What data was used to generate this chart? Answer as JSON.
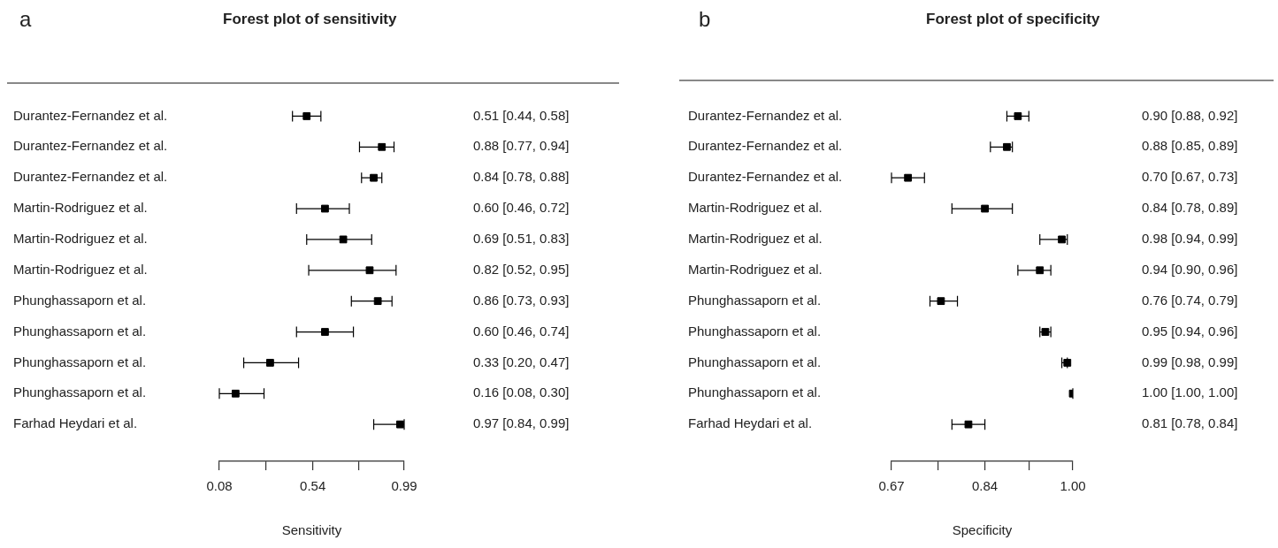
{
  "chart_data": [
    {
      "type": "scatter",
      "orientation": "horizontal",
      "title": "Forest plot of sensitivity",
      "xlabel": "Sensitivity",
      "annotations": [
        "a"
      ],
      "marker": "square",
      "grid": false,
      "color": "#000000",
      "categories": [
        "Durantez-Fernandez et al.",
        "Durantez-Fernandez et al.",
        "Durantez-Fernandez et al.",
        "Martin-Rodriguez et al.",
        "Martin-Rodriguez et al.",
        "Martin-Rodriguez et al.",
        "Phunghassaporn et al.",
        "Phunghassaporn et al.",
        "Phunghassaporn et al.",
        "Phunghassaporn et al.",
        "Farhad Heydari et al."
      ],
      "values": [
        0.51,
        0.88,
        0.84,
        0.6,
        0.69,
        0.82,
        0.86,
        0.6,
        0.33,
        0.16,
        0.97
      ],
      "errors": [
        [
          0.44,
          0.58
        ],
        [
          0.77,
          0.94
        ],
        [
          0.78,
          0.88
        ],
        [
          0.46,
          0.72
        ],
        [
          0.51,
          0.83
        ],
        [
          0.52,
          0.95
        ],
        [
          0.73,
          0.93
        ],
        [
          0.46,
          0.74
        ],
        [
          0.2,
          0.47
        ],
        [
          0.08,
          0.3
        ],
        [
          0.84,
          0.99
        ]
      ],
      "value_labels": [
        "0.51 [0.44, 0.58]",
        "0.88 [0.77, 0.94]",
        "0.84 [0.78, 0.88]",
        "0.60 [0.46, 0.72]",
        "0.69 [0.51, 0.83]",
        "0.82 [0.52, 0.95]",
        "0.86 [0.73, 0.93]",
        "0.60 [0.46, 0.74]",
        "0.33 [0.20, 0.47]",
        "0.16 [0.08, 0.30]",
        "0.97 [0.84, 0.99]"
      ],
      "xlim": [
        0.08,
        0.99
      ],
      "xticks": [
        0.08,
        {
          "value": 0.31,
          "label": null
        },
        0.54,
        {
          "value": 0.765,
          "label": null
        },
        0.99
      ]
    },
    {
      "type": "scatter",
      "orientation": "horizontal",
      "title": "Forest plot of specificity",
      "xlabel": "Specificity",
      "annotations": [
        "b"
      ],
      "marker": "square",
      "grid": false,
      "color": "#000000",
      "categories": [
        "Durantez-Fernandez et al.",
        "Durantez-Fernandez et al.",
        "Durantez-Fernandez et al.",
        "Martin-Rodriguez et al.",
        "Martin-Rodriguez et al.",
        "Martin-Rodriguez et al.",
        "Phunghassaporn et al.",
        "Phunghassaporn et al.",
        "Phunghassaporn et al.",
        "Phunghassaporn et al.",
        "Farhad Heydari et al."
      ],
      "values": [
        0.9,
        0.88,
        0.7,
        0.84,
        0.98,
        0.94,
        0.76,
        0.95,
        0.99,
        1.0,
        0.81
      ],
      "errors": [
        [
          0.88,
          0.92
        ],
        [
          0.85,
          0.89
        ],
        [
          0.67,
          0.73
        ],
        [
          0.78,
          0.89
        ],
        [
          0.94,
          0.99
        ],
        [
          0.9,
          0.96
        ],
        [
          0.74,
          0.79
        ],
        [
          0.94,
          0.96
        ],
        [
          0.98,
          0.99
        ],
        [
          1.0,
          1.0
        ],
        [
          0.78,
          0.84
        ]
      ],
      "value_labels": [
        "0.90 [0.88, 0.92]",
        "0.88 [0.85, 0.89]",
        "0.70 [0.67, 0.73]",
        "0.84 [0.78, 0.89]",
        "0.98 [0.94, 0.99]",
        "0.94 [0.90, 0.96]",
        "0.76 [0.74, 0.79]",
        "0.95 [0.94, 0.96]",
        "0.99 [0.98, 0.99]",
        "1.00 [1.00, 1.00]",
        "0.81 [0.78, 0.84]"
      ],
      "xlim": [
        0.67,
        1.0
      ],
      "xticks": [
        0.67,
        {
          "value": 0.755,
          "label": null
        },
        0.84,
        {
          "value": 0.92,
          "label": null
        },
        {
          "value": 1.0,
          "label": "1.00"
        }
      ]
    }
  ]
}
